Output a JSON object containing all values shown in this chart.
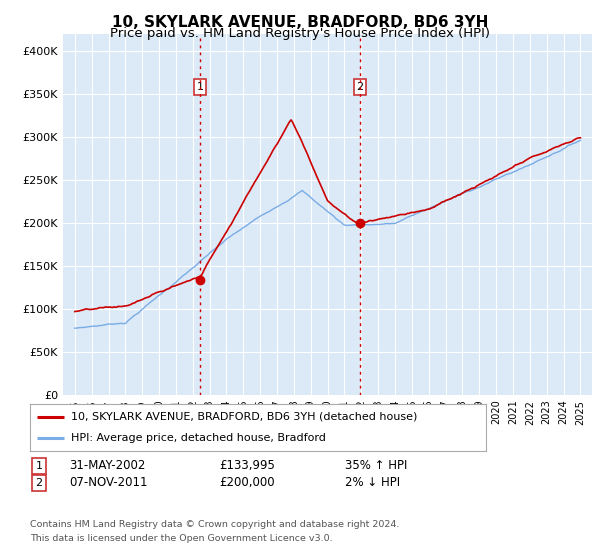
{
  "title": "10, SKYLARK AVENUE, BRADFORD, BD6 3YH",
  "subtitle": "Price paid vs. HM Land Registry's House Price Index (HPI)",
  "ylim": [
    0,
    420000
  ],
  "yticks": [
    0,
    50000,
    100000,
    150000,
    200000,
    250000,
    300000,
    350000,
    400000
  ],
  "ytick_labels": [
    "£0",
    "£50K",
    "£100K",
    "£150K",
    "£200K",
    "£250K",
    "£300K",
    "£350K",
    "£400K"
  ],
  "background_color": "#ffffff",
  "plot_bg_color": "#dce9f7",
  "grid_color": "#ffffff",
  "sale1_year": 2002.42,
  "sale1_price": 133995,
  "sale1_date_str": "31-MAY-2002",
  "sale1_amount_str": "£133,995",
  "sale1_hpi_str": "35% ↑ HPI",
  "sale2_year": 2011.92,
  "sale2_price": 200000,
  "sale2_date_str": "07-NOV-2011",
  "sale2_amount_str": "£200,000",
  "sale2_hpi_str": "2% ↓ HPI",
  "legend_label1": "10, SKYLARK AVENUE, BRADFORD, BD6 3YH (detached house)",
  "legend_label2": "HPI: Average price, detached house, Bradford",
  "footer_line1": "Contains HM Land Registry data © Crown copyright and database right 2024.",
  "footer_line2": "This data is licensed under the Open Government Licence v3.0.",
  "line1_color": "#cc0000",
  "line2_color": "#7aace6",
  "vline_color": "#cc0000",
  "marker_color": "#cc0000",
  "title_fontsize": 11,
  "subtitle_fontsize": 9.5,
  "tick_fontsize": 8
}
